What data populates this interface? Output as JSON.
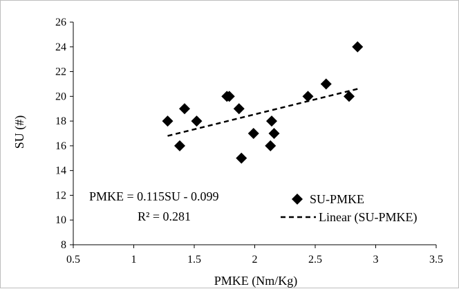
{
  "chart_data": {
    "type": "scatter",
    "title": "",
    "xlabel": "PMKE (Nm/Kg)",
    "ylabel": "SU (#)",
    "xlim": [
      0.5,
      3.5
    ],
    "ylim": [
      8,
      26
    ],
    "xticks": [
      0.5,
      1,
      1.5,
      2,
      2.5,
      3,
      3.5
    ],
    "yticks": [
      8,
      10,
      12,
      14,
      16,
      18,
      20,
      22,
      24,
      26
    ],
    "xtick_labels": [
      "0.5",
      "1",
      "1.5",
      "2",
      "2.5",
      "3",
      "3.5"
    ],
    "ytick_labels": [
      "8",
      "10",
      "12",
      "14",
      "16",
      "18",
      "20",
      "22",
      "24",
      "26"
    ],
    "grid": false,
    "legend_position": "bottom-right",
    "series": [
      {
        "name": "SU-PMKE",
        "marker": "diamond",
        "color": "#000000",
        "points": [
          {
            "x": 1.28,
            "y": 18
          },
          {
            "x": 1.38,
            "y": 16
          },
          {
            "x": 1.42,
            "y": 19
          },
          {
            "x": 1.52,
            "y": 18
          },
          {
            "x": 1.77,
            "y": 20
          },
          {
            "x": 1.79,
            "y": 20
          },
          {
            "x": 1.87,
            "y": 19
          },
          {
            "x": 1.89,
            "y": 15
          },
          {
            "x": 1.99,
            "y": 17
          },
          {
            "x": 2.13,
            "y": 16
          },
          {
            "x": 2.14,
            "y": 18
          },
          {
            "x": 2.16,
            "y": 17
          },
          {
            "x": 2.44,
            "y": 20
          },
          {
            "x": 2.59,
            "y": 21
          },
          {
            "x": 2.78,
            "y": 20
          },
          {
            "x": 2.85,
            "y": 24
          }
        ]
      }
    ],
    "trendline": {
      "name": "Linear (SU-PMKE)",
      "style": "dashed",
      "color": "#000000",
      "x": [
        1.28,
        2.85
      ],
      "y": [
        16.8,
        20.6
      ]
    },
    "annotations": {
      "equation": "PMKE = 0.115SU - 0.099",
      "r_squared": "R² = 0.281"
    }
  }
}
